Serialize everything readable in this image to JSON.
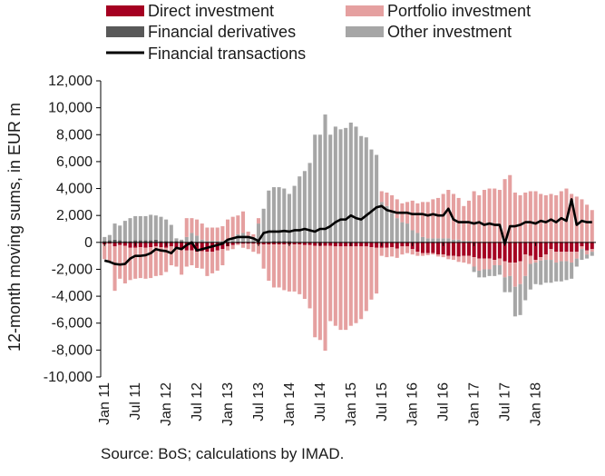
{
  "chart_data": {
    "type": "bar",
    "stacked": true,
    "ylabel": "12-month moving sums, in EUR m",
    "source": "Source: BoS; calculations by IMAD.",
    "ylim": [
      -10000,
      12000
    ],
    "y_ticks": [
      -10000,
      -8000,
      -6000,
      -4000,
      -2000,
      0,
      2000,
      4000,
      6000,
      8000,
      10000,
      12000
    ],
    "y_tick_labels": [
      "-10,000",
      "-8,000",
      "-6,000",
      "-4,000",
      "-2,000",
      "0",
      "2,000",
      "4,000",
      "6,000",
      "8,000",
      "10,000",
      "12,000"
    ],
    "x_tick_labels": [
      "Jan 11",
      "Jul 11",
      "Jan 12",
      "Jul 12",
      "Jan 13",
      "Jul 13",
      "Jan 14",
      "Jul 14",
      "Jan 15",
      "Jul 15",
      "Jan 16",
      "Jul 16",
      "Jan 17",
      "Jul 17",
      "Jan 18"
    ],
    "grid": false,
    "legend_position": "top",
    "colors": {
      "direct": "#a50021",
      "portfolio": "#e5a0a0",
      "derivatives": "#595959",
      "other": "#a6a6a6",
      "transactions": "#000000"
    },
    "series": [
      {
        "key": "direct",
        "name": "Direct investment",
        "values": [
          -150,
          -100,
          -300,
          -200,
          -250,
          -400,
          -400,
          -350,
          -400,
          -350,
          -300,
          -350,
          -400,
          -300,
          -500,
          -500,
          -600,
          -600,
          -700,
          -650,
          -700,
          -700,
          -600,
          -500,
          -300,
          -200,
          -100,
          -100,
          -100,
          -100,
          -150,
          -150,
          -150,
          -150,
          -150,
          -150,
          -150,
          -150,
          -150,
          -200,
          -200,
          -250,
          -250,
          -250,
          -250,
          -300,
          -300,
          -300,
          -300,
          -300,
          -300,
          -300,
          -350,
          -400,
          -400,
          -400,
          -350,
          -450,
          -300,
          -300,
          -500,
          -700,
          -800,
          -800,
          -800,
          -900,
          -900,
          -1000,
          -1000,
          -1050,
          -1000,
          -1000,
          -1100,
          -1200,
          -1200,
          -1200,
          -1300,
          -1200,
          -1400,
          -1500,
          -1500,
          -1400,
          -900,
          -1000,
          -1300,
          -1100,
          -900,
          -500,
          -700,
          -700,
          -700,
          -700,
          -700,
          -300,
          -600,
          -500
        ]
      },
      {
        "key": "portfolio",
        "name": "Portfolio investment",
        "values": [
          -1100,
          -1300,
          -3300,
          -2500,
          -2800,
          -2400,
          -2300,
          -2300,
          -2300,
          -2300,
          -2200,
          -2100,
          -1800,
          -1400,
          -1300,
          -1900,
          -1200,
          -1100,
          -1200,
          -1300,
          -1800,
          -1600,
          -1500,
          -1200,
          -300,
          -300,
          -100,
          -300,
          -400,
          -600,
          -700,
          -1800,
          -2700,
          -3200,
          -3200,
          -3400,
          -3500,
          -3500,
          -3700,
          -4000,
          -4700,
          -6800,
          -7000,
          -7800,
          -5600,
          -5900,
          -6200,
          -6200,
          -5900,
          -5700,
          -5400,
          -4800,
          -3900,
          -3400,
          -600,
          -700,
          -700,
          -700,
          -600,
          -500,
          -400,
          -300,
          -200,
          -150,
          -100,
          -150,
          -200,
          -250,
          -300,
          -400,
          -500,
          -600,
          -700,
          -900,
          -800,
          -800,
          -400,
          -500,
          -1200,
          -1000,
          -1800,
          -1700,
          -1600,
          -600,
          -200,
          -250,
          -400,
          -800,
          -800,
          -700,
          -700,
          -800,
          -500,
          -200,
          -300,
          -200
        ]
      },
      {
        "key": "derivatives",
        "name": "Financial derivatives",
        "values": [
          100,
          150,
          200,
          150,
          100,
          100,
          150,
          150,
          150,
          150,
          200,
          100,
          100,
          100,
          100,
          100,
          0,
          0,
          0,
          0,
          0,
          0,
          0,
          0,
          0,
          0,
          0,
          0,
          0,
          0,
          0,
          0,
          50,
          100,
          100,
          100,
          100,
          0,
          0,
          0,
          0,
          0,
          0,
          0,
          0,
          0,
          0,
          0,
          0,
          0,
          0,
          0,
          0,
          0,
          0,
          0,
          0,
          0,
          0,
          0,
          0,
          0,
          0,
          0,
          0,
          0,
          0,
          0,
          0,
          0,
          0,
          0,
          0,
          0,
          0,
          0,
          0,
          0,
          0,
          0,
          0,
          0,
          0,
          0,
          0,
          0,
          0,
          0,
          0,
          0,
          0,
          0,
          0,
          0,
          0,
          0
        ]
      },
      {
        "key": "other",
        "name": "Other investment",
        "values": [
          300,
          400,
          1200,
          1100,
          1500,
          1700,
          1800,
          1800,
          1800,
          1900,
          1800,
          1800,
          1600,
          1200,
          200,
          100,
          400,
          700,
          500,
          200,
          100,
          100,
          100,
          100,
          200,
          300,
          600,
          700,
          500,
          400,
          1400,
          2500,
          3800,
          4000,
          4000,
          3900,
          3500,
          4200,
          4900,
          5300,
          5900,
          8000,
          8000,
          9500,
          8000,
          8600,
          8400,
          8500,
          8900,
          8600,
          7900,
          7800,
          6900,
          6500,
          3000,
          2700,
          2200,
          1800,
          1500,
          1400,
          900,
          700,
          400,
          300,
          300,
          300,
          300,
          300,
          200,
          200,
          100,
          100,
          -400,
          -500,
          -600,
          -500,
          -800,
          -700,
          -1100,
          -1200,
          -2200,
          -2300,
          -1800,
          -1900,
          -1600,
          -1800,
          -1700,
          -1700,
          -1400,
          -1500,
          -1400,
          -1200,
          -600,
          -800,
          -300,
          -300
        ]
      },
      {
        "key": "portfolio_pos",
        "name": "Portfolio investment",
        "values": [
          0,
          0,
          0,
          0,
          0,
          0,
          0,
          0,
          0,
          0,
          0,
          0,
          0,
          0,
          0,
          0,
          1400,
          1100,
          1200,
          1200,
          1000,
          1000,
          1000,
          1100,
          1500,
          1600,
          1400,
          1600,
          300,
          200,
          400,
          0,
          0,
          0,
          0,
          0,
          0,
          0,
          0,
          0,
          0,
          0,
          0,
          0,
          0,
          0,
          0,
          0,
          0,
          0,
          0,
          0,
          0,
          0,
          800,
          1000,
          1300,
          1400,
          1400,
          1600,
          2200,
          2200,
          2600,
          2700,
          2900,
          3000,
          3300,
          3600,
          3400,
          3100,
          2600,
          3000,
          3800,
          3500,
          3900,
          4000,
          4000,
          3900,
          4700,
          5000,
          3700,
          3500,
          3700,
          3800,
          3800,
          3600,
          3500,
          3600,
          3500,
          3800,
          4000,
          3600,
          3400,
          3200,
          2800,
          2400
        ]
      }
    ],
    "line": {
      "name": "Financial transactions",
      "values": [
        -1350,
        -1450,
        -1600,
        -1650,
        -1600,
        -1200,
        -1000,
        -1000,
        -950,
        -800,
        -500,
        -600,
        -650,
        -800,
        -400,
        -500,
        -200,
        0,
        -600,
        -500,
        -400,
        -300,
        -200,
        -100,
        200,
        300,
        400,
        400,
        400,
        300,
        100,
        700,
        800,
        800,
        800,
        850,
        800,
        900,
        900,
        1000,
        900,
        800,
        1000,
        1000,
        1200,
        1500,
        1700,
        1700,
        2000,
        1800,
        1700,
        2000,
        2300,
        2600,
        2700,
        2400,
        2300,
        2200,
        2200,
        2200,
        2100,
        2100,
        2100,
        2000,
        2100,
        2000,
        2000,
        2500,
        1700,
        1500,
        1500,
        1500,
        1400,
        1500,
        1300,
        1400,
        1300,
        1300,
        -100,
        1200,
        1200,
        1300,
        1500,
        1500,
        1400,
        1600,
        1500,
        1700,
        1500,
        1800,
        1600,
        3200,
        1300,
        1600,
        1500,
        1500
      ]
    }
  }
}
